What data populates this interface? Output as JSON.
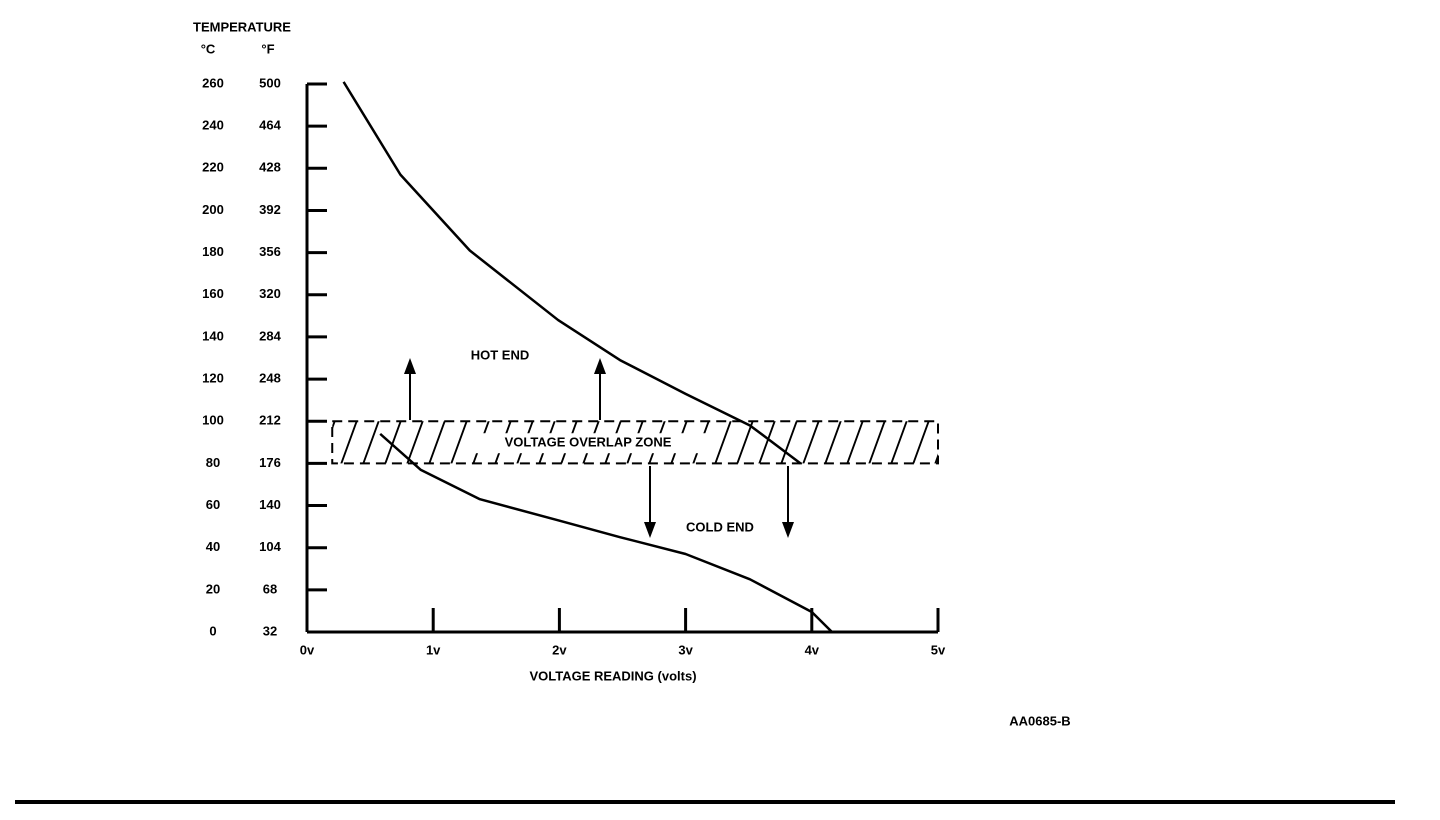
{
  "chart_data": {
    "type": "line",
    "title": "TEMPERATURE",
    "y_unit_label": "°C",
    "y2_unit_label": "°F",
    "x_label": "VOLTAGE READING (volts)",
    "figure_id": "AA0685-B",
    "ylim": [
      0,
      260
    ],
    "yticks": [
      0,
      20,
      40,
      60,
      80,
      100,
      120,
      140,
      160,
      180,
      200,
      220,
      240,
      260
    ],
    "y2lim": [
      32,
      500
    ],
    "y2ticks": [
      32,
      68,
      104,
      140,
      176,
      212,
      248,
      284,
      320,
      356,
      392,
      428,
      464,
      500
    ],
    "xlim": [
      0,
      5
    ],
    "xticks": [
      {
        "value": 0,
        "label": "0v"
      },
      {
        "value": 1,
        "label": "1v"
      },
      {
        "value": 2,
        "label": "2v"
      },
      {
        "value": 3,
        "label": "3v"
      },
      {
        "value": 4,
        "label": "4v"
      },
      {
        "value": 5,
        "label": "5v"
      }
    ],
    "series": [
      {
        "name": "HOT END",
        "color": "#000000",
        "x": [
          0.29,
          0.74,
          1.29,
          1.99,
          2.48,
          3.0,
          3.51,
          3.91
        ],
        "values": [
          261,
          217,
          181,
          148,
          129,
          113,
          98,
          80
        ]
      },
      {
        "name": "COLD END",
        "color": "#000000",
        "x": [
          0.58,
          0.9,
          1.37,
          1.99,
          2.48,
          3.0,
          3.51,
          4.0,
          4.16
        ],
        "values": [
          94,
          77,
          63,
          53,
          45,
          37,
          25,
          9.5,
          0
        ]
      }
    ],
    "overlap_zone": {
      "label": "VOLTAGE OVERLAP ZONE",
      "xlim": [
        0.2,
        5
      ],
      "ylim": [
        80,
        100
      ]
    }
  }
}
